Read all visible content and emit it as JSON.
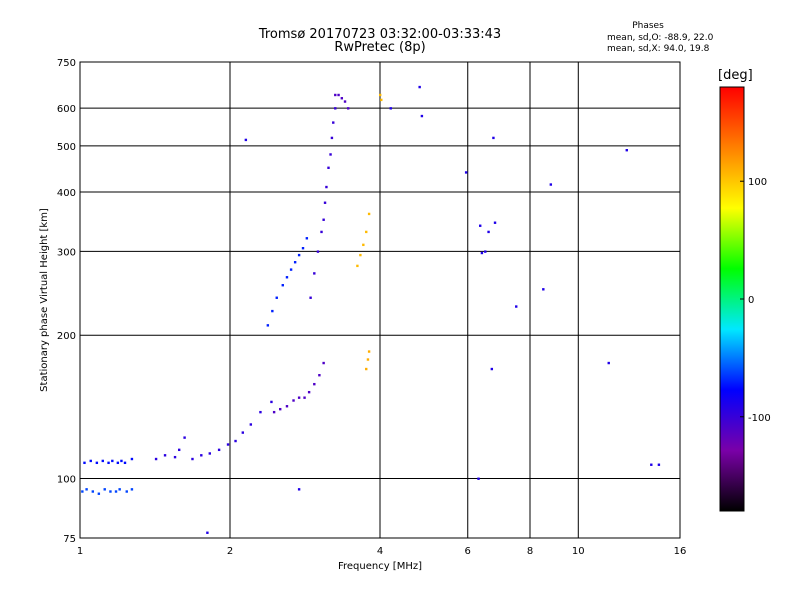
{
  "chart_data": {
    "type": "scatter",
    "title": "Tromsø 20170723 03:32:00-03:33:43",
    "subtitle": "RwPretec (8p)",
    "xlabel": "Frequency [MHz]",
    "ylabel": "Stationary phase Virtual Height [km]",
    "x_scale": "log",
    "y_scale": "log",
    "xlim": [
      1,
      16
    ],
    "ylim": [
      75,
      750
    ],
    "x_ticks": [
      1,
      2,
      4,
      6,
      8,
      10,
      16
    ],
    "y_ticks": [
      75,
      100,
      200,
      300,
      400,
      500,
      600,
      750
    ],
    "x_grid": [
      2,
      4,
      6,
      8,
      10
    ],
    "y_grid": [
      100,
      200,
      300,
      400,
      500,
      600
    ],
    "phase_info": {
      "heading": "Phases",
      "o_mode": "mean, sd,O: -88.9, 22.0",
      "x_mode": "mean, sd,X:  94.0, 19.8"
    },
    "colorbar": {
      "label": "[deg]",
      "range": [
        -180,
        180
      ],
      "ticks": [
        100,
        0,
        -100
      ],
      "colors": [
        "#000000",
        "#7a00a8",
        "#0000ff",
        "#00e8ff",
        "#00ff00",
        "#ffff00",
        "#ff8000",
        "#ff0000"
      ]
    },
    "series": [
      {
        "x": [
          1.02,
          1.05,
          1.08,
          1.11,
          1.14,
          1.16,
          1.19,
          1.21,
          1.23,
          1.27
        ],
        "y": [
          108,
          109,
          108,
          109,
          108,
          109,
          108,
          109,
          108,
          110
        ],
        "phase": -75
      },
      {
        "x": [
          1.01,
          1.03,
          1.06,
          1.09,
          1.12,
          1.15,
          1.18,
          1.2,
          1.24,
          1.27
        ],
        "y": [
          94,
          95,
          94,
          93,
          95,
          94,
          94,
          95,
          94,
          95
        ],
        "phase": -62
      },
      {
        "x": [
          1.42,
          1.48,
          1.55,
          1.58,
          1.62,
          1.68,
          1.75,
          1.82,
          1.9,
          1.98,
          2.05,
          2.12,
          2.2,
          2.3,
          2.42
        ],
        "y": [
          110,
          112,
          111,
          115,
          122,
          110,
          112,
          113,
          115,
          118,
          120,
          125,
          130,
          138,
          145
        ],
        "phase": -95
      },
      {
        "x": [
          2.45,
          2.52,
          2.6,
          2.68,
          2.75,
          2.82,
          2.88,
          2.95,
          3.02,
          3.08
        ],
        "y": [
          138,
          140,
          142,
          146,
          148,
          148,
          152,
          158,
          165,
          175
        ],
        "phase": -110
      },
      {
        "x": [
          2.38,
          2.43,
          2.48,
          2.55,
          2.6,
          2.65,
          2.7,
          2.75,
          2.8,
          2.85
        ],
        "y": [
          210,
          225,
          240,
          255,
          265,
          275,
          285,
          295,
          305,
          320
        ],
        "phase": -70
      },
      {
        "x": [
          2.9,
          2.95,
          3.0,
          3.05,
          3.08,
          3.1,
          3.12,
          3.15,
          3.18,
          3.2,
          3.22,
          3.25
        ],
        "y": [
          240,
          270,
          300,
          330,
          350,
          380,
          410,
          450,
          480,
          520,
          560,
          600
        ],
        "phase": -100
      },
      {
        "x": [
          3.25,
          3.3,
          3.35,
          3.4,
          3.45
        ],
        "y": [
          640,
          640,
          630,
          620,
          600
        ],
        "phase": -110
      },
      {
        "x": [
          3.6,
          3.65,
          3.7,
          3.75,
          3.8
        ],
        "y": [
          280,
          295,
          310,
          330,
          360
        ],
        "phase": 105
      },
      {
        "x": [
          3.75,
          3.78,
          3.8
        ],
        "y": [
          170,
          178,
          185
        ],
        "phase": 110
      },
      {
        "x": [
          4.0,
          4.02
        ],
        "y": [
          640,
          625
        ],
        "phase": 105
      },
      {
        "x": [
          1.8,
          2.15,
          2.75,
          4.2,
          4.8,
          4.85,
          5.95,
          6.3,
          6.35,
          6.4,
          6.5,
          6.6,
          6.7,
          6.75,
          6.8,
          7.5,
          8.5,
          8.8,
          11.5,
          12.5,
          14.0,
          14.5
        ],
        "y": [
          77,
          515,
          95,
          600,
          665,
          578,
          440,
          100,
          340,
          298,
          300,
          330,
          170,
          520,
          345,
          230,
          250,
          415,
          175,
          490,
          107,
          107
        ],
        "phase": -90
      }
    ]
  }
}
